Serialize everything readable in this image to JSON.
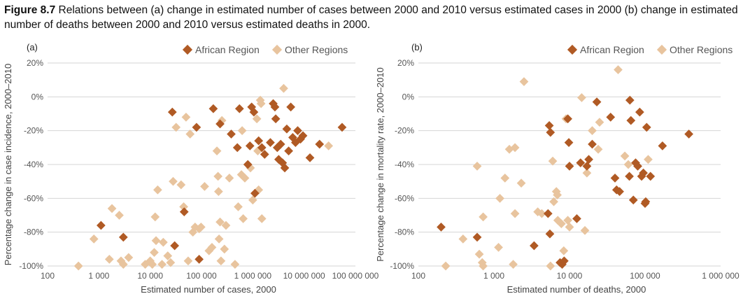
{
  "figure": {
    "number": "Figure 8.7",
    "caption": "Relations between (a) change in estimated number of cases between 2000 and 2010 versus estimated cases in 2000 (b) change in estimated number of deaths between 2000 and 2010 versus estimated deaths in 2000."
  },
  "colors": {
    "african": "#b05a24",
    "other": "#e8c49e",
    "grid": "#d4d4d4"
  },
  "chart_data": [
    {
      "type": "scatter",
      "panel_label": "(a)",
      "xlabel": "Estimated number of cases, 2000",
      "ylabel": "Percentage change in case incidence, 2000–2010",
      "x_scale": "log",
      "xlim": [
        100,
        100000000
      ],
      "ylim": [
        -100,
        20
      ],
      "x_ticks": [
        100,
        1000,
        10000,
        100000,
        1000000,
        10000000,
        100000000
      ],
      "x_tick_labels": [
        "100",
        "1 000",
        "10 000",
        "100 000",
        "1 000 000",
        "10 000 000",
        "100 000 000"
      ],
      "y_ticks": [
        -100,
        -80,
        -60,
        -40,
        -20,
        0,
        20
      ],
      "y_tick_labels": [
        "-100%",
        "-80%",
        "-60%",
        "-40%",
        "-20%",
        "0%",
        "20%"
      ],
      "grid": "horizontal",
      "legend": "top-right",
      "series": [
        {
          "name": "African Region",
          "points": [
            [
              1100,
              -76
            ],
            [
              3000,
              -83
            ],
            [
              30000,
              -88
            ],
            [
              90000,
              -96
            ],
            [
              27000,
              -9
            ],
            [
              46000,
              -68
            ],
            [
              80000,
              -18
            ],
            [
              170000,
              -7
            ],
            [
              230000,
              -16
            ],
            [
              380000,
              -22
            ],
            [
              500000,
              -30
            ],
            [
              550000,
              -7
            ],
            [
              800000,
              -40
            ],
            [
              880000,
              -29
            ],
            [
              950000,
              -6
            ],
            [
              1050000,
              -9
            ],
            [
              1100000,
              -57
            ],
            [
              1300000,
              -26
            ],
            [
              1500000,
              -30
            ],
            [
              1700000,
              -34
            ],
            [
              2200000,
              -27
            ],
            [
              2500000,
              -4
            ],
            [
              2700000,
              -6
            ],
            [
              2800000,
              -13
            ],
            [
              3000000,
              -30
            ],
            [
              3200000,
              -37
            ],
            [
              3500000,
              -28
            ],
            [
              3800000,
              -39
            ],
            [
              4200000,
              -42
            ],
            [
              4600000,
              -19
            ],
            [
              5000000,
              -32
            ],
            [
              5500000,
              -6
            ],
            [
              6000000,
              -24
            ],
            [
              6800000,
              -27
            ],
            [
              7500000,
              -20
            ],
            [
              8500000,
              -25
            ],
            [
              9500000,
              -23
            ],
            [
              13000000,
              -36
            ],
            [
              20000000,
              -28
            ],
            [
              55000000,
              -18
            ]
          ]
        },
        {
          "name": "Other Regions",
          "points": [
            [
              400,
              -100
            ],
            [
              800,
              -84
            ],
            [
              1800,
              -66
            ],
            [
              1600,
              -96
            ],
            [
              2500,
              -70
            ],
            [
              2700,
              -97
            ],
            [
              3000,
              -99
            ],
            [
              3800,
              -95
            ],
            [
              8000,
              -99
            ],
            [
              10000,
              -97
            ],
            [
              11000,
              -99
            ],
            [
              12000,
              -92
            ],
            [
              12500,
              -71
            ],
            [
              13000,
              -85
            ],
            [
              14000,
              -55
            ],
            [
              17000,
              -99
            ],
            [
              18000,
              -86
            ],
            [
              22000,
              -94
            ],
            [
              25000,
              -98
            ],
            [
              28000,
              -50
            ],
            [
              32000,
              -18
            ],
            [
              40000,
              -52
            ],
            [
              45000,
              -65
            ],
            [
              50000,
              -12
            ],
            [
              55000,
              -97
            ],
            [
              60000,
              -22
            ],
            [
              68000,
              -80
            ],
            [
              75000,
              -77
            ],
            [
              90000,
              -78
            ],
            [
              98000,
              -77
            ],
            [
              115000,
              -53
            ],
            [
              140000,
              -91
            ],
            [
              160000,
              -89
            ],
            [
              200000,
              -32
            ],
            [
              210000,
              -47
            ],
            [
              215000,
              -56
            ],
            [
              220000,
              -84
            ],
            [
              230000,
              -74
            ],
            [
              240000,
              -97
            ],
            [
              250000,
              -14
            ],
            [
              280000,
              -90
            ],
            [
              300000,
              -76
            ],
            [
              350000,
              -48
            ],
            [
              450000,
              -99
            ],
            [
              520000,
              -65
            ],
            [
              600000,
              -46
            ],
            [
              620000,
              -20
            ],
            [
              650000,
              -72
            ],
            [
              700000,
              -48
            ],
            [
              900000,
              -42
            ],
            [
              1000000,
              -61
            ],
            [
              1200000,
              -13
            ],
            [
              1250000,
              -32
            ],
            [
              1300000,
              -55
            ],
            [
              1400000,
              -2
            ],
            [
              1450000,
              -4
            ],
            [
              1500000,
              -72
            ],
            [
              4000000,
              5
            ],
            [
              30000000,
              -29
            ]
          ]
        }
      ]
    },
    {
      "type": "scatter",
      "panel_label": "(b)",
      "xlabel": "Estimated number of deaths, 2000",
      "ylabel": "Percentage change in mortality rate, 2000–2010",
      "x_scale": "log",
      "xlim": [
        100,
        1000000
      ],
      "ylim": [
        -100,
        20
      ],
      "x_ticks": [
        100,
        1000,
        10000,
        100000,
        1000000
      ],
      "x_tick_labels": [
        "100",
        "1 000",
        "10 000",
        "100 000",
        "1 000 000"
      ],
      "y_ticks": [
        -100,
        -80,
        -60,
        -40,
        -20,
        0,
        20
      ],
      "y_tick_labels": [
        "-100%",
        "-80%",
        "-60%",
        "-40%",
        "-20%",
        "0%",
        "20%"
      ],
      "grid": "horizontal",
      "legend": "top-right",
      "series": [
        {
          "name": "African Region",
          "points": [
            [
              200,
              -77
            ],
            [
              600,
              -83
            ],
            [
              3400,
              -88
            ],
            [
              5200,
              -69
            ],
            [
              5400,
              -17
            ],
            [
              5600,
              -21
            ],
            [
              5500,
              -81
            ],
            [
              7500,
              -98
            ],
            [
              8000,
              -99
            ],
            [
              8500,
              -97
            ],
            [
              9500,
              -13
            ],
            [
              9800,
              -27
            ],
            [
              10000,
              -41
            ],
            [
              12500,
              -72
            ],
            [
              14000,
              -39
            ],
            [
              17000,
              -41
            ],
            [
              18000,
              -37
            ],
            [
              20000,
              -28
            ],
            [
              23000,
              -3
            ],
            [
              35000,
              -12
            ],
            [
              40000,
              -48
            ],
            [
              42000,
              -55
            ],
            [
              46000,
              -56
            ],
            [
              62000,
              -47
            ],
            [
              63000,
              -2
            ],
            [
              65000,
              -14
            ],
            [
              70000,
              -61
            ],
            [
              75000,
              -39
            ],
            [
              80000,
              -41
            ],
            [
              85000,
              -9
            ],
            [
              90000,
              -47
            ],
            [
              95000,
              -45
            ],
            [
              100000,
              -63
            ],
            [
              102000,
              -62
            ],
            [
              105000,
              -18
            ],
            [
              118000,
              -47
            ],
            [
              170000,
              -29
            ],
            [
              380000,
              -22
            ]
          ]
        },
        {
          "name": "Other Regions",
          "points": [
            [
              230,
              -100
            ],
            [
              390,
              -84
            ],
            [
              600,
              -41
            ],
            [
              640,
              -93
            ],
            [
              720,
              -71
            ],
            [
              700,
              -98
            ],
            [
              720,
              -100
            ],
            [
              1150,
              -89
            ],
            [
              1200,
              -60
            ],
            [
              1400,
              -48
            ],
            [
              1600,
              -31
            ],
            [
              1800,
              -99
            ],
            [
              1900,
              -30
            ],
            [
              1900,
              -69
            ],
            [
              2300,
              -51
            ],
            [
              2500,
              9
            ],
            [
              3800,
              -68
            ],
            [
              4300,
              -69
            ],
            [
              5600,
              -100
            ],
            [
              6000,
              -38
            ],
            [
              6200,
              -62
            ],
            [
              6700,
              -56
            ],
            [
              6900,
              -58
            ],
            [
              7000,
              -73
            ],
            [
              7800,
              -75
            ],
            [
              8400,
              -91
            ],
            [
              9000,
              -13
            ],
            [
              9500,
              -73
            ],
            [
              10000,
              -77
            ],
            [
              14500,
              -0.5
            ],
            [
              16000,
              -79
            ],
            [
              17000,
              -45
            ],
            [
              20000,
              -20
            ],
            [
              24000,
              -31
            ],
            [
              25000,
              -15
            ],
            [
              44000,
              16
            ],
            [
              54000,
              -35
            ],
            [
              60000,
              -40
            ],
            [
              110000,
              -37
            ]
          ]
        }
      ]
    }
  ]
}
